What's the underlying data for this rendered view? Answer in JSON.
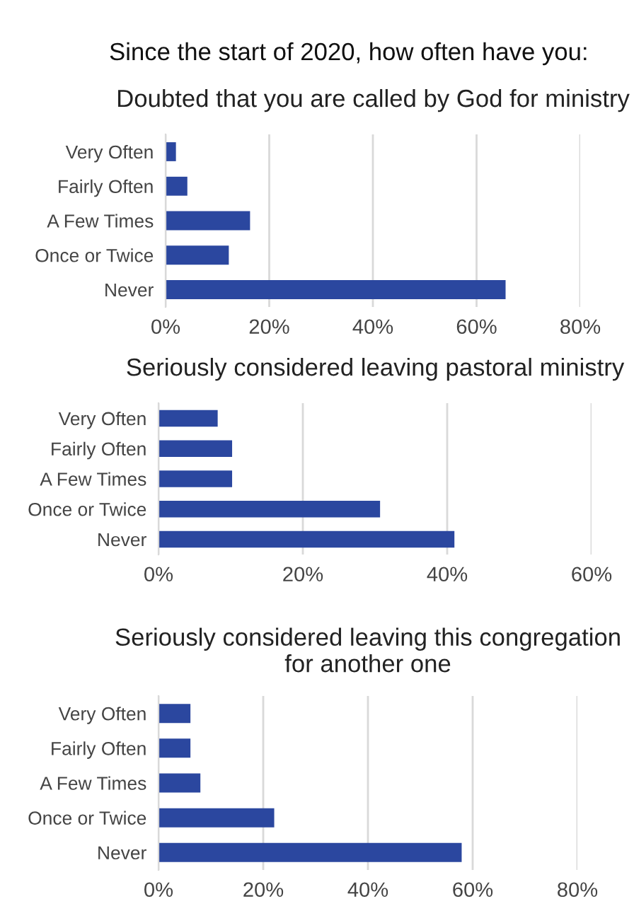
{
  "chart_data": [
    {
      "type": "bar",
      "orientation": "horizontal",
      "title": "Doubted that you are called by God for ministry",
      "annotations": [
        "Since the start of 2020, how often have you:"
      ],
      "categories": [
        "Very Often",
        "Fairly Often",
        "A Few Times",
        "Once or Twice",
        "Never"
      ],
      "values": [
        2,
        4.2,
        16.3,
        12.2,
        65.6
      ],
      "color": "#2b479f",
      "xlim": [
        0,
        80
      ],
      "xticks": [
        {
          "value": 0,
          "label": "0%"
        },
        {
          "value": 20,
          "label": "20%"
        },
        {
          "value": 40,
          "label": "40%"
        },
        {
          "value": 60,
          "label": "60%"
        },
        {
          "value": 80,
          "label": "80%"
        }
      ],
      "grid": "x"
    },
    {
      "type": "bar",
      "orientation": "horizontal",
      "title": "Seriously considered leaving pastoral ministry",
      "categories": [
        "Very Often",
        "Fairly Often",
        "A Few Times",
        "Once or Twice",
        "Never"
      ],
      "values": [
        8.2,
        10.2,
        10.2,
        30.7,
        41.0
      ],
      "color": "#2b479f",
      "xlim": [
        0,
        60
      ],
      "xticks": [
        {
          "value": 0,
          "label": "0%"
        },
        {
          "value": 20,
          "label": "20%"
        },
        {
          "value": 40,
          "label": "40%"
        },
        {
          "value": 60,
          "label": "60%"
        }
      ],
      "grid": "x"
    },
    {
      "type": "bar",
      "orientation": "horizontal",
      "title": "Seriously considered leaving this congregation for another one",
      "categories": [
        "Very Often",
        "Fairly Often",
        "A Few Times",
        "Once or Twice",
        "Never"
      ],
      "values": [
        6.1,
        6.1,
        8.0,
        22.1,
        57.9
      ],
      "color": "#2b479f",
      "xlim": [
        0,
        80
      ],
      "xticks": [
        {
          "value": 0,
          "label": "0%"
        },
        {
          "value": 20,
          "label": "20%"
        },
        {
          "value": 40,
          "label": "40%"
        },
        {
          "value": 60,
          "label": "60%"
        },
        {
          "value": 80,
          "label": "80%"
        }
      ],
      "grid": "x"
    }
  ]
}
